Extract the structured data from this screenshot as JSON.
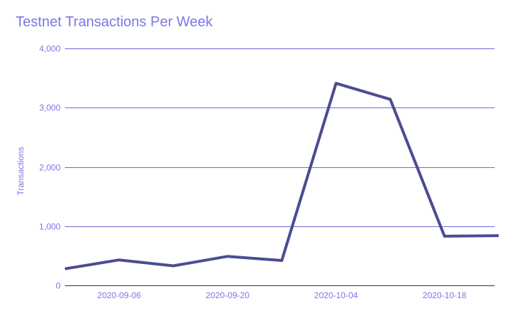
{
  "chart_data": {
    "type": "line",
    "title": "Testnet Transactions Per Week",
    "xlabel": "",
    "ylabel": "Transactions",
    "x": [
      "2020-08-30",
      "2020-09-06",
      "2020-09-13",
      "2020-09-20",
      "2020-09-27",
      "2020-10-04",
      "2020-10-11",
      "2020-10-18",
      "2020-10-25"
    ],
    "x_ticks": [
      "2020-09-06",
      "2020-09-20",
      "2020-10-04",
      "2020-10-18"
    ],
    "series": [
      {
        "values": [
          280,
          430,
          330,
          490,
          420,
          3410,
          3140,
          830,
          840
        ]
      }
    ],
    "ylim": [
      0,
      4000
    ],
    "y_ticks": [
      0,
      1000,
      2000,
      3000,
      4000
    ],
    "y_tick_labels": [
      "0",
      "1,000",
      "2,000",
      "3,000",
      "4,000"
    ],
    "grid": true,
    "legend": "none",
    "colors": {
      "line": "#4b4c93",
      "grid": "#6f6bdc",
      "text": "#7b77e6"
    }
  }
}
